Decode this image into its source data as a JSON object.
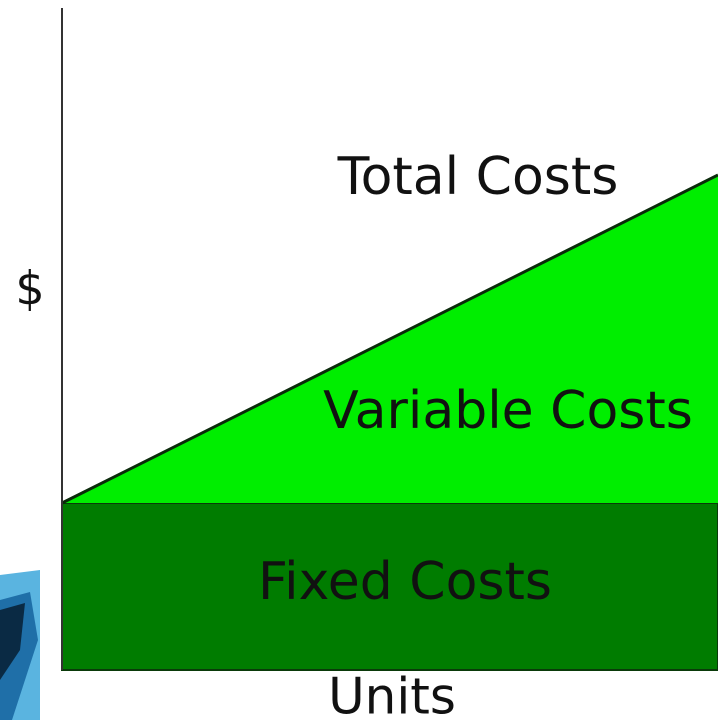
{
  "axes": {
    "y_label": "$",
    "x_label": "Units"
  },
  "regions": {
    "total": "Total Costs",
    "variable": "Variable Costs",
    "fixed": "Fixed Costs"
  }
}
